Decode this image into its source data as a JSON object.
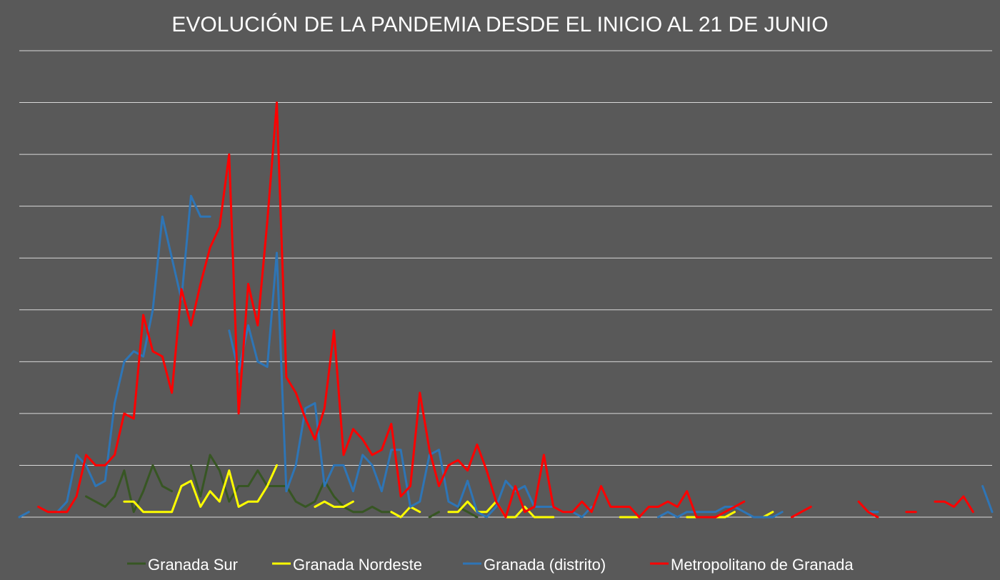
{
  "chart_data": {
    "type": "line",
    "title": "EVOLUCIÓN DE LA PANDEMIA DESDE EL INICIO AL 21 DE JUNIO",
    "xlabel": "",
    "ylabel": "",
    "ylim": [
      0,
      90
    ],
    "ytick_step": 10,
    "grid": true,
    "legend_position": "bottom",
    "x": [
      0,
      1,
      2,
      3,
      4,
      5,
      6,
      7,
      8,
      9,
      10,
      11,
      12,
      13,
      14,
      15,
      16,
      17,
      18,
      19,
      20,
      21,
      22,
      23,
      24,
      25,
      26,
      27,
      28,
      29,
      30,
      31,
      32,
      33,
      34,
      35,
      36,
      37,
      38,
      39,
      40,
      41,
      42,
      43,
      44,
      45,
      46,
      47,
      48,
      49,
      50,
      51,
      52,
      53,
      54,
      55,
      56,
      57,
      58,
      59,
      60,
      61,
      62,
      63,
      64,
      65,
      66,
      67,
      68,
      69,
      70,
      71,
      72,
      73,
      74,
      75,
      76,
      77,
      78,
      79,
      80,
      81,
      82,
      83,
      84,
      85,
      86,
      87,
      88,
      89,
      90,
      91,
      92,
      93,
      94,
      95,
      96,
      97,
      98,
      99,
      100,
      101,
      102
    ],
    "series": [
      {
        "name": "Granada Sur",
        "color": "#375623",
        "values": [
          null,
          null,
          null,
          null,
          null,
          null,
          null,
          4,
          3,
          2,
          4,
          9,
          1,
          5,
          10,
          6,
          5,
          null,
          10,
          4,
          12,
          9,
          3,
          6,
          6,
          9,
          6,
          6,
          6,
          3,
          2,
          3,
          7,
          4,
          2,
          1,
          1,
          2,
          1,
          1,
          null,
          null,
          null,
          0,
          1,
          null,
          2,
          1,
          0,
          null,
          null,
          null,
          null,
          null,
          null,
          null,
          null,
          null,
          null,
          null,
          null,
          null,
          null,
          null,
          null,
          null,
          null,
          null,
          null,
          null,
          null,
          null,
          null,
          null,
          null,
          null,
          null,
          null,
          0,
          null,
          null,
          null,
          null,
          null,
          null,
          null,
          null,
          null,
          null,
          null,
          null,
          null,
          null,
          null,
          null,
          null,
          null,
          null,
          null,
          null,
          null,
          null,
          null
        ]
      },
      {
        "name": "Granada Nordeste",
        "color": "#ffff00",
        "values": [
          null,
          null,
          null,
          null,
          null,
          null,
          null,
          null,
          null,
          null,
          null,
          3,
          3,
          1,
          1,
          1,
          1,
          6,
          7,
          2,
          5,
          3,
          9,
          2,
          3,
          3,
          6,
          10,
          null,
          null,
          null,
          2,
          3,
          2,
          2,
          3,
          null,
          null,
          null,
          1,
          0,
          2,
          1,
          null,
          null,
          1,
          1,
          3,
          1,
          1,
          3,
          0,
          0,
          2,
          0,
          0,
          0,
          null,
          null,
          null,
          null,
          null,
          null,
          0,
          0,
          0,
          null,
          null,
          null,
          null,
          0,
          0,
          0,
          0,
          0,
          1,
          null,
          null,
          0,
          1,
          null,
          null,
          null,
          null,
          null,
          null,
          null,
          null,
          null,
          null,
          null,
          null,
          null,
          null,
          null,
          null,
          null,
          null,
          null,
          null,
          null,
          null,
          null
        ]
      },
      {
        "name": "Granada (distrito)",
        "color": "#2e75b6",
        "values": [
          0,
          1,
          null,
          null,
          1,
          3,
          12,
          10,
          6,
          7,
          22,
          30,
          32,
          31,
          40,
          58,
          50,
          42,
          62,
          58,
          58,
          null,
          36,
          28,
          37,
          30,
          29,
          51,
          5,
          10,
          21,
          22,
          6,
          10,
          10,
          5,
          12,
          10,
          5,
          13,
          13,
          2,
          3,
          12,
          13,
          3,
          2,
          7,
          1,
          0,
          2,
          7,
          5,
          6,
          2,
          2,
          2,
          1,
          1,
          0,
          2,
          null,
          null,
          null,
          null,
          null,
          null,
          0,
          1,
          0,
          1,
          1,
          1,
          1,
          2,
          2,
          1,
          0,
          0,
          0,
          1,
          null,
          null,
          null,
          null,
          null,
          null,
          null,
          null,
          1,
          1,
          null,
          null,
          null,
          null,
          null,
          null,
          null,
          null,
          null,
          null,
          6,
          1
        ]
      },
      {
        "name": "Metropolitano de Granada",
        "color": "#ff0000",
        "values": [
          null,
          null,
          2,
          1,
          1,
          1,
          4,
          12,
          10,
          10,
          12,
          20,
          19,
          39,
          32,
          31,
          24,
          44,
          37,
          45,
          52,
          56,
          70,
          20,
          45,
          37,
          57,
          80,
          27,
          24,
          19,
          15,
          21,
          36,
          12,
          17,
          15,
          12,
          13,
          18,
          4,
          6,
          24,
          13,
          6,
          10,
          11,
          9,
          14,
          9,
          3,
          0,
          6,
          1,
          2,
          12,
          2,
          1,
          1,
          3,
          1,
          6,
          2,
          2,
          2,
          0,
          2,
          2,
          3,
          2,
          5,
          0,
          0,
          0,
          1,
          2,
          3,
          null,
          null,
          null,
          null,
          0,
          1,
          2,
          null,
          null,
          null,
          null,
          3,
          1,
          0,
          null,
          null,
          1,
          1,
          null,
          3,
          3,
          2,
          4,
          1,
          null,
          null
        ]
      }
    ]
  }
}
